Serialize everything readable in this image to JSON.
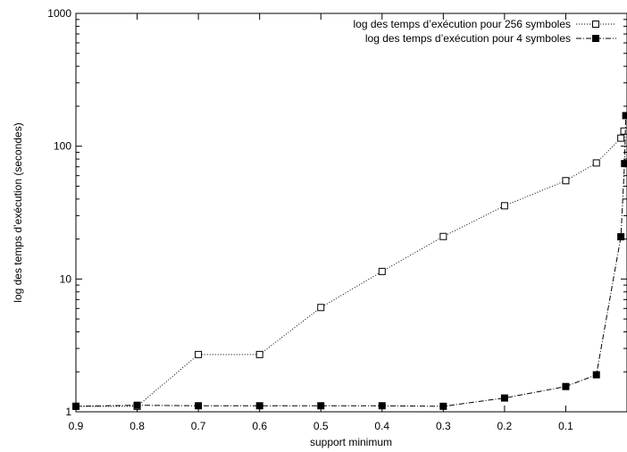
{
  "chart_data": {
    "type": "line",
    "xlabel": "support minimum",
    "ylabel": "log des temps d’exécution (secondes)",
    "x_axis": {
      "reversed": true,
      "xlim": [
        0.9,
        0.0
      ],
      "ticks": [
        0.9,
        0.8,
        0.7,
        0.6,
        0.5,
        0.4,
        0.3,
        0.2,
        0.1
      ],
      "tick_labels": [
        "0.9",
        "0.8",
        "0.7",
        "0.6",
        "0.5",
        "0.4",
        "0.3",
        "0.2",
        "0.1"
      ]
    },
    "y_axis": {
      "scale": "log",
      "ylim": [
        1,
        1000
      ],
      "ticks": [
        1,
        10,
        100,
        1000
      ],
      "tick_labels": [
        "1",
        "10",
        "100",
        "1000"
      ]
    },
    "grid": false,
    "legend_position": "top-right",
    "series": [
      {
        "name": "log des temps d’exécution pour 256 symboles",
        "line_style": "dotted",
        "marker": "open-square",
        "color": "#000000",
        "x": [
          0.9,
          0.8,
          0.7,
          0.6,
          0.5,
          0.4,
          0.3,
          0.2,
          0.1,
          0.05,
          0.01,
          0.005
        ],
        "y": [
          1.1,
          1.1,
          2.7,
          2.7,
          6.1,
          11.4,
          20.9,
          35.6,
          55.0,
          74.8,
          115,
          130
        ]
      },
      {
        "name": "log des temps d’exécution pour 4 symboles",
        "line_style": "dash-dot",
        "marker": "filled-square",
        "color": "#000000",
        "x": [
          0.9,
          0.8,
          0.7,
          0.6,
          0.5,
          0.4,
          0.3,
          0.2,
          0.1,
          0.05,
          0.01,
          0.004,
          0.002
        ],
        "y": [
          1.1,
          1.12,
          1.11,
          1.11,
          1.11,
          1.11,
          1.1,
          1.27,
          1.55,
          1.9,
          20.8,
          74,
          170
        ]
      }
    ]
  }
}
